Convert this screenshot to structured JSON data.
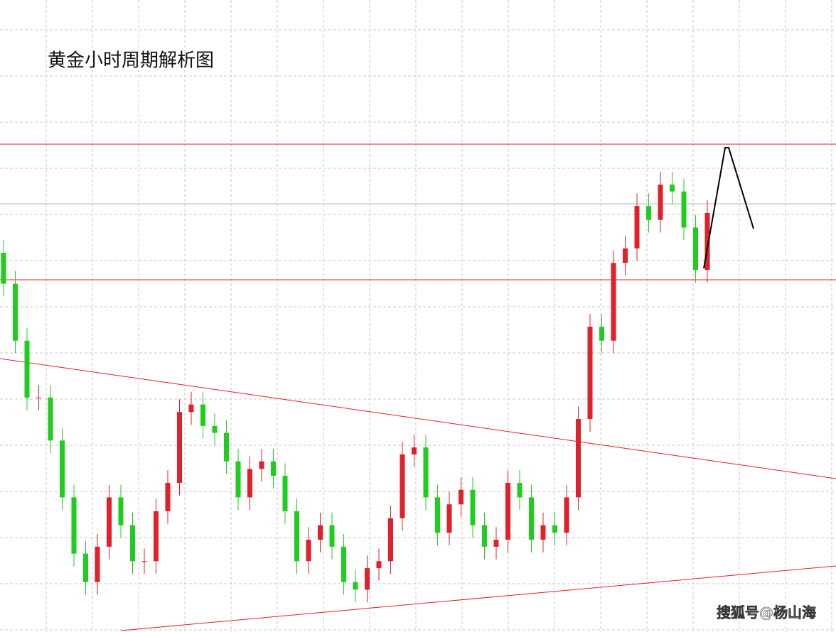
{
  "chart_data": {
    "type": "candlestick",
    "title": "黄金小时周期解析图",
    "watermark": "搜狐号@杨山海",
    "ylim": [
      0,
      100
    ],
    "up_color": "#e0202a",
    "down_color": "#1fcc1f",
    "open": [
      60,
      55.1,
      46.1,
      37.1,
      37.1,
      30.3,
      21.3,
      12.4,
      7.9,
      13.5,
      21.3,
      16.9,
      11.2,
      11.2,
      19.1,
      23.6,
      34.8,
      36.0,
      32.6,
      31.5,
      27.0,
      21.3,
      25.8,
      27.0,
      24.7,
      19.1,
      11.2,
      14.6,
      16.9,
      13.5,
      7.9,
      6.7,
      10.1,
      11.2,
      18.0,
      28.1,
      29.2,
      21.3,
      15.7,
      20.2,
      22.5,
      16.9,
      13.5,
      14.6,
      23.6,
      21.3,
      14.6,
      16.9,
      15.7,
      21.3,
      33.7,
      48.3,
      46.1,
      58.4,
      60.7,
      67.4,
      65.2,
      70.8,
      69.7,
      64.0,
      57.3
    ],
    "high": [
      62,
      57.1,
      48.1,
      39.1,
      39.1,
      32.3,
      23.3,
      14.4,
      15.5,
      23.3,
      23.3,
      18.9,
      13.2,
      21.1,
      25.6,
      36.8,
      38.0,
      38.0,
      34.6,
      33.5,
      29.0,
      27.8,
      29.0,
      29.0,
      26.7,
      21.1,
      16.6,
      18.9,
      18.9,
      15.5,
      9.9,
      12.1,
      13.2,
      20.0,
      30.1,
      31.2,
      31.2,
      23.3,
      22.2,
      24.5,
      24.5,
      18.9,
      16.6,
      25.6,
      25.6,
      23.3,
      18.9,
      18.9,
      23.3,
      35.7,
      50.3,
      50.3,
      60.4,
      62.7,
      69.4,
      69.4,
      72.8,
      72.8,
      71.7,
      66.0,
      68.3
    ],
    "low": [
      53.1,
      44.1,
      35.1,
      35.1,
      28.3,
      19.3,
      10.4,
      5.9,
      5.9,
      11.5,
      14.9,
      9.2,
      9.2,
      9.2,
      17.1,
      21.6,
      32.8,
      30.6,
      29.5,
      25.0,
      19.3,
      19.3,
      23.8,
      22.7,
      17.1,
      9.2,
      9.2,
      12.6,
      11.5,
      5.9,
      4.7,
      4.7,
      8.1,
      9.2,
      16.0,
      26.1,
      19.3,
      13.7,
      13.7,
      18.2,
      14.9,
      11.5,
      11.5,
      12.6,
      19.3,
      12.6,
      12.6,
      13.7,
      13.7,
      19.3,
      31.7,
      44.1,
      44.1,
      56.4,
      58.7,
      63.2,
      63.2,
      67.7,
      62.0,
      55.3,
      55.3
    ],
    "close": [
      55.1,
      46.1,
      37.1,
      37.1,
      30.3,
      21.3,
      12.4,
      7.9,
      13.5,
      21.3,
      16.9,
      11.2,
      11.2,
      19.1,
      23.6,
      34.8,
      36.0,
      32.6,
      31.5,
      27.0,
      21.3,
      25.8,
      27.0,
      24.7,
      19.1,
      11.2,
      14.6,
      16.9,
      13.5,
      7.9,
      6.7,
      10.1,
      11.2,
      18.0,
      28.1,
      29.2,
      21.3,
      15.7,
      20.2,
      22.5,
      16.9,
      13.5,
      14.6,
      23.6,
      21.3,
      14.6,
      16.9,
      15.7,
      21.3,
      33.7,
      48.3,
      46.1,
      58.4,
      60.7,
      67.4,
      65.2,
      70.8,
      69.7,
      64.0,
      57.3,
      66.3
    ]
  }
}
